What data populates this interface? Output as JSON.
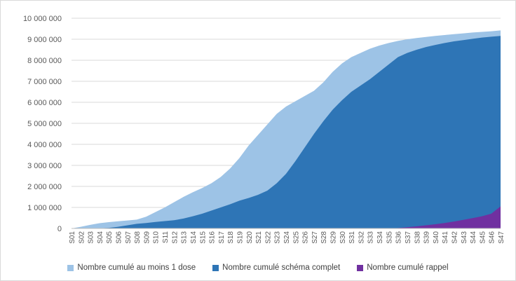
{
  "chart_data": {
    "type": "area",
    "stacked": false,
    "categories": [
      "S01",
      "S02",
      "S03",
      "S04",
      "S05",
      "S06",
      "S07",
      "S08",
      "S09",
      "S10",
      "S11",
      "S12",
      "S13",
      "S14",
      "S15",
      "S16",
      "S17",
      "S18",
      "S19",
      "S20",
      "S21",
      "S22",
      "S23",
      "S24",
      "S25",
      "S26",
      "S27",
      "S28",
      "S29",
      "S30",
      "S31",
      "S32",
      "S33",
      "S34",
      "S35",
      "S36",
      "S37",
      "S38",
      "S39",
      "S40",
      "S41",
      "S42",
      "S43",
      "S44",
      "S45",
      "S46",
      "S47"
    ],
    "ylim": [
      0,
      10000000
    ],
    "yticks": [
      0,
      1000000,
      2000000,
      3000000,
      4000000,
      5000000,
      6000000,
      7000000,
      8000000,
      9000000,
      10000000
    ],
    "ytick_labels": [
      "0",
      "1 000 000",
      "2 000 000",
      "3 000 000",
      "4 000 000",
      "5 000 000",
      "6 000 000",
      "7 000 000",
      "8 000 000",
      "9 000 000",
      "10 000 000"
    ],
    "grid": "horizontal",
    "legend_position": "bottom",
    "series": [
      {
        "name": "Nombre cumulé au moins 1 dose",
        "color": "#9dc3e6",
        "values": [
          0,
          80000,
          170000,
          250000,
          300000,
          340000,
          380000,
          420000,
          560000,
          780000,
          1000000,
          1250000,
          1500000,
          1720000,
          1920000,
          2150000,
          2450000,
          2850000,
          3350000,
          3950000,
          4450000,
          4950000,
          5450000,
          5800000,
          6050000,
          6300000,
          6550000,
          6950000,
          7450000,
          7850000,
          8150000,
          8350000,
          8550000,
          8700000,
          8820000,
          8920000,
          9000000,
          9060000,
          9110000,
          9160000,
          9200000,
          9240000,
          9280000,
          9320000,
          9350000,
          9380000,
          9420000
        ]
      },
      {
        "name": "Nombre cumulé schéma complet",
        "color": "#2e75b6",
        "values": [
          0,
          0,
          0,
          10000,
          30000,
          80000,
          150000,
          220000,
          260000,
          310000,
          350000,
          390000,
          470000,
          580000,
          700000,
          850000,
          1000000,
          1150000,
          1320000,
          1450000,
          1600000,
          1800000,
          2150000,
          2600000,
          3200000,
          3850000,
          4500000,
          5100000,
          5650000,
          6100000,
          6500000,
          6800000,
          7100000,
          7450000,
          7800000,
          8150000,
          8350000,
          8500000,
          8630000,
          8730000,
          8820000,
          8900000,
          8960000,
          9020000,
          9080000,
          9120000,
          9160000
        ]
      },
      {
        "name": "Nombre cumulé rappel",
        "color": "#7030a0",
        "values": [
          0,
          0,
          0,
          0,
          0,
          0,
          0,
          0,
          0,
          0,
          0,
          0,
          0,
          0,
          0,
          0,
          0,
          0,
          0,
          0,
          0,
          0,
          0,
          0,
          0,
          0,
          0,
          0,
          0,
          0,
          0,
          0,
          0,
          0,
          0,
          20000,
          60000,
          100000,
          150000,
          200000,
          260000,
          330000,
          410000,
          490000,
          580000,
          700000,
          1050000
        ]
      }
    ]
  }
}
